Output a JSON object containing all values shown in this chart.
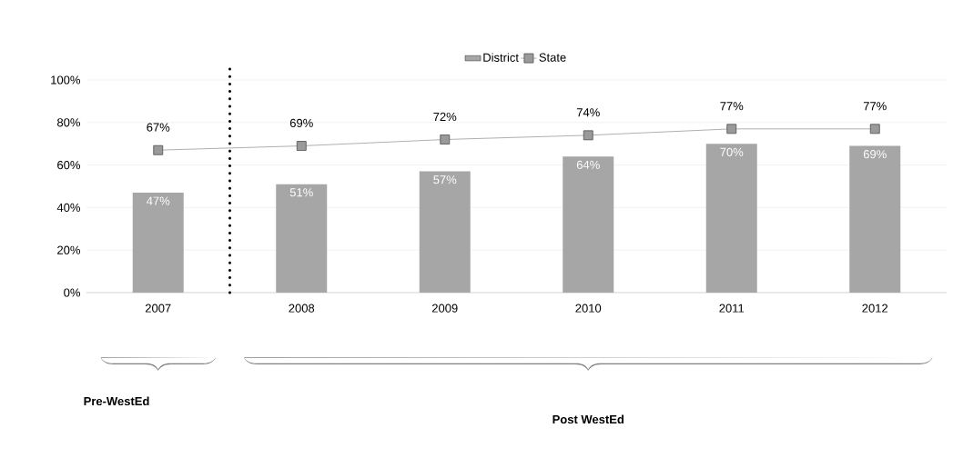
{
  "chart_data": {
    "type": "bar",
    "categories": [
      "2007",
      "2008",
      "2009",
      "2010",
      "2011",
      "2012"
    ],
    "series": [
      {
        "name": "District",
        "color": "#a6a6a6",
        "values": [
          47,
          51,
          57,
          64,
          70,
          69
        ],
        "value_labels": [
          "47%",
          "51%",
          "57%",
          "64%",
          "70%",
          "69%"
        ]
      },
      {
        "name": "State",
        "type": "line",
        "color": "#9a9a9a",
        "marker": "square",
        "values": [
          67,
          69,
          72,
          74,
          77,
          77
        ],
        "value_labels": [
          "67%",
          "69%",
          "72%",
          "74%",
          "77%",
          "77%"
        ]
      }
    ],
    "ylim": [
      0,
      100
    ],
    "yticks": [
      {
        "value": 0,
        "label": "0%"
      },
      {
        "value": 20,
        "label": "20%"
      },
      {
        "value": 40,
        "label": "40%"
      },
      {
        "value": 60,
        "label": "60%"
      },
      {
        "value": 80,
        "label": "80%"
      },
      {
        "value": 100,
        "label": "100%"
      }
    ],
    "grid": "y",
    "legend": "top",
    "annotations": [
      "Pre-WestEd",
      "Post WestEd"
    ]
  }
}
